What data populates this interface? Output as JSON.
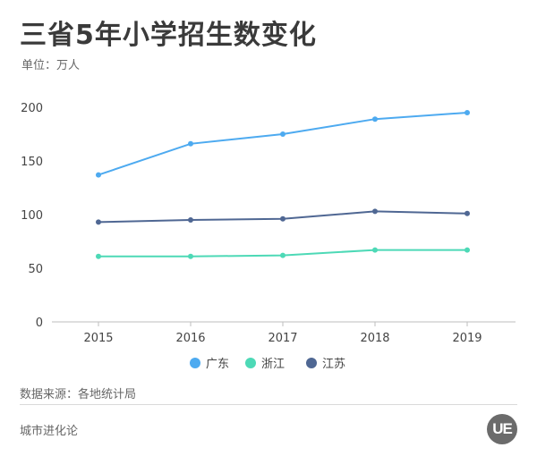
{
  "title": "三省5年小学招生数变化",
  "unit_label": "单位：万人",
  "source": "数据来源：各地统计局",
  "brand": "城市进化论",
  "logo_text": "UE",
  "chart_data": {
    "type": "line",
    "categories": [
      "2015",
      "2016",
      "2017",
      "2018",
      "2019"
    ],
    "ylim": [
      0,
      200
    ],
    "yticks": [
      0,
      50,
      100,
      150,
      200
    ],
    "ytick_labels": [
      "0",
      "50",
      "100",
      "150",
      "200"
    ],
    "grid": false,
    "legend": "bottom",
    "series": [
      {
        "name": "广东",
        "color": "#4daaf0",
        "values": [
          137,
          166,
          175,
          189,
          195
        ]
      },
      {
        "name": "浙江",
        "color": "#4dd9b6",
        "values": [
          61,
          61,
          62,
          67,
          67
        ]
      },
      {
        "name": "江苏",
        "color": "#4f6793",
        "values": [
          93,
          95,
          96,
          103,
          101
        ]
      }
    ]
  }
}
